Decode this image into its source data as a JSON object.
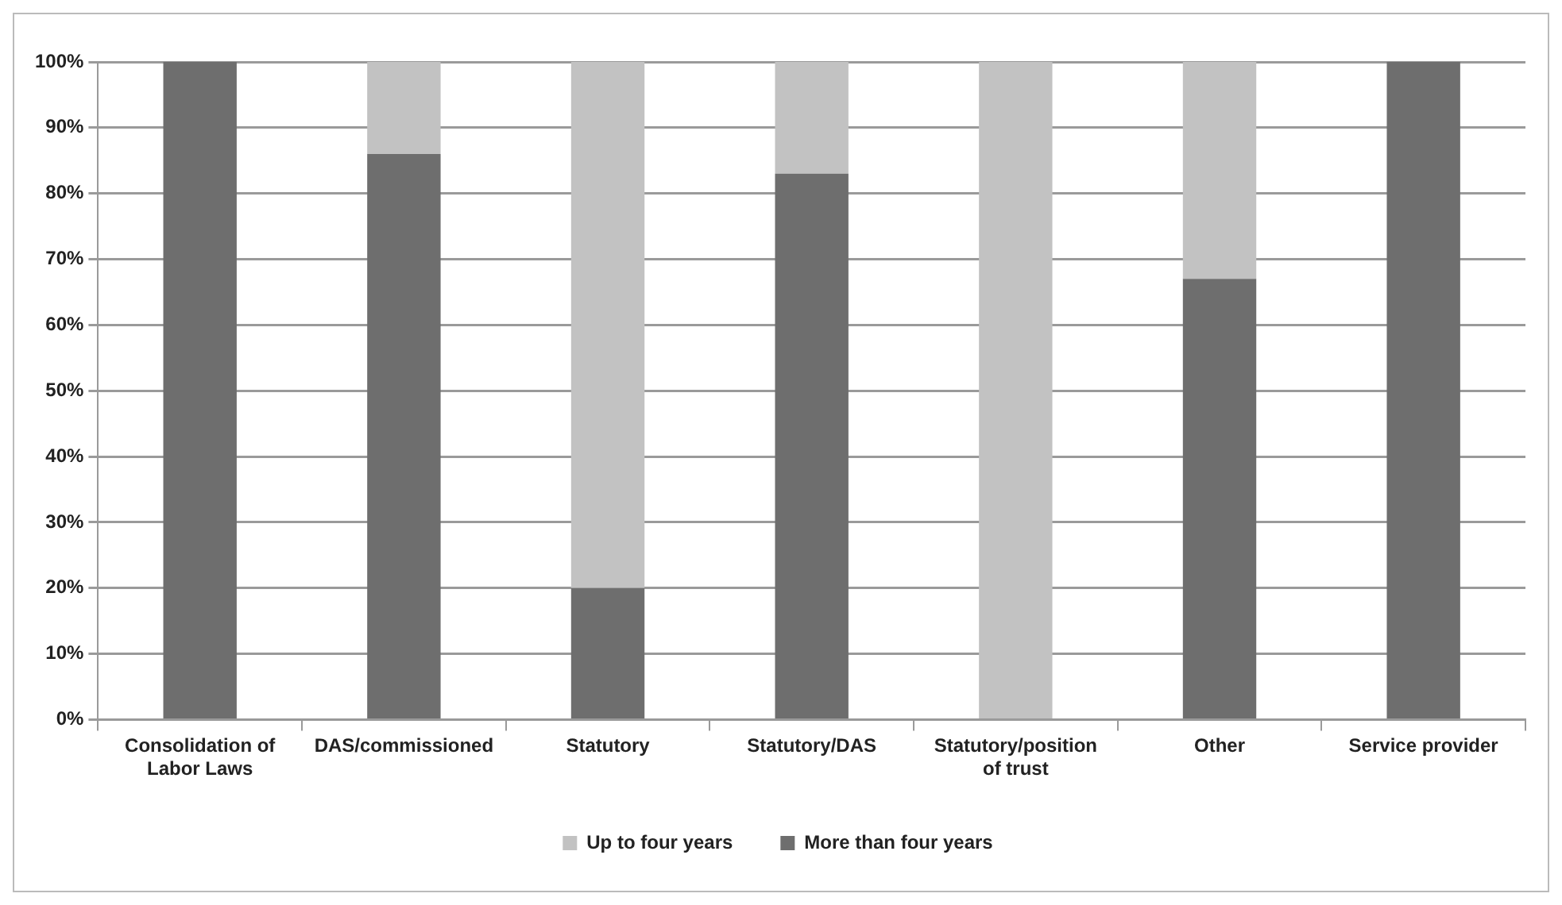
{
  "chart_data": {
    "type": "bar",
    "stacked": true,
    "categories": [
      "Consolidation of Labor Laws",
      "DAS/commissioned",
      "Statutory",
      "Statutory/DAS",
      "Statutory/position of trust",
      "Other",
      "Service provider"
    ],
    "series": [
      {
        "name": "More than four years",
        "color": "#6e6e6e",
        "values": [
          100,
          86,
          20,
          83,
          0,
          67,
          100
        ]
      },
      {
        "name": "Up to four years",
        "color": "#c2c2c2",
        "values": [
          0,
          14,
          80,
          17,
          100,
          33,
          0
        ]
      }
    ],
    "ylim": [
      0,
      100
    ],
    "yticks": [
      {
        "value": 0,
        "label": "0%"
      },
      {
        "value": 10,
        "label": "10%"
      },
      {
        "value": 20,
        "label": "20%"
      },
      {
        "value": 30,
        "label": "30%"
      },
      {
        "value": 40,
        "label": "40%"
      },
      {
        "value": 50,
        "label": "50%"
      },
      {
        "value": 60,
        "label": "60%"
      },
      {
        "value": 70,
        "label": "70%"
      },
      {
        "value": 80,
        "label": "80%"
      },
      {
        "value": 90,
        "label": "90%"
      },
      {
        "value": 100,
        "label": "100%"
      }
    ],
    "grid": "y",
    "legend": "bottom"
  }
}
